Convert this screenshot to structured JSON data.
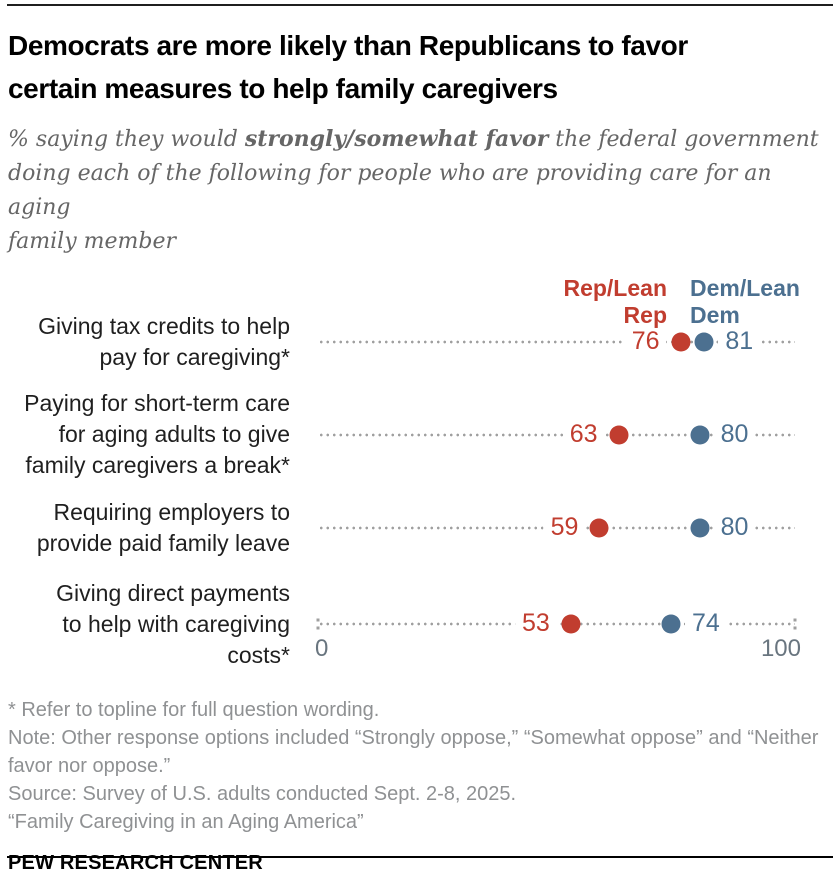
{
  "header": {
    "title_lines": [
      "Democrats are more likely than Republicans to favor",
      "certain measures to help family caregivers"
    ],
    "subtitle": {
      "line1_pre": "% saying they would ",
      "line1_bold": "strongly/somewhat favor",
      "line1_post": " the federal government",
      "line2": "doing each of the following for people who are providing care for an aging",
      "line3": "family member"
    }
  },
  "legend": {
    "rep_lines": [
      "Rep/Lean",
      "Rep"
    ],
    "dem_lines": [
      "Dem/Lean",
      "Dem"
    ]
  },
  "chart_data": {
    "type": "scatter",
    "subtype": "dot-plot",
    "title": "Democrats are more likely than Republicans to favor certain measures to help family caregivers",
    "categories": [
      "Giving tax credits to help pay for caregiving*",
      "Paying for short-term care for aging adults to give family caregivers a break*",
      "Requiring employers to provide paid family leave",
      "Giving direct payments to help with caregiving costs*"
    ],
    "category_lines": [
      [
        "Giving tax credits to help",
        "pay for caregiving*"
      ],
      [
        "Paying for short-term care",
        "for aging adults to give",
        "family caregivers a break*"
      ],
      [
        "Requiring employers to",
        "provide paid family leave"
      ],
      [
        "Giving direct payments",
        "to help with caregiving",
        "costs*"
      ]
    ],
    "series": [
      {
        "name": "Rep/Lean Rep",
        "color": "#c13d2f",
        "values": [
          76,
          63,
          59,
          53
        ]
      },
      {
        "name": "Dem/Lean Dem",
        "color": "#4c7090",
        "values": [
          81,
          80,
          80,
          74
        ]
      }
    ],
    "xlim": [
      0,
      100
    ],
    "x_axis_labels": [
      "0",
      "100"
    ],
    "grid": "dotted leader lines per row",
    "legend_position": "top, above first row, aligned to dots"
  },
  "axis": {
    "min_label": "0",
    "max_label": "100"
  },
  "colors": {
    "rep": "#c13d2f",
    "dem": "#4c7090",
    "leader_dots": "#9f9f9f",
    "axis_label": "#69757f",
    "subtitle_text": "#666666",
    "footnote_text": "#8f9193"
  },
  "footer": {
    "notes": [
      "* Refer to topline for full question wording.",
      "Note: Other response options included “Strongly oppose,” “Somewhat oppose” and “Neither favor nor oppose.”",
      "Source: Survey of U.S. adults conducted Sept. 2-8, 2025.",
      "“Family Caregiving in an Aging America”"
    ],
    "brand": "PEW RESEARCH CENTER"
  }
}
